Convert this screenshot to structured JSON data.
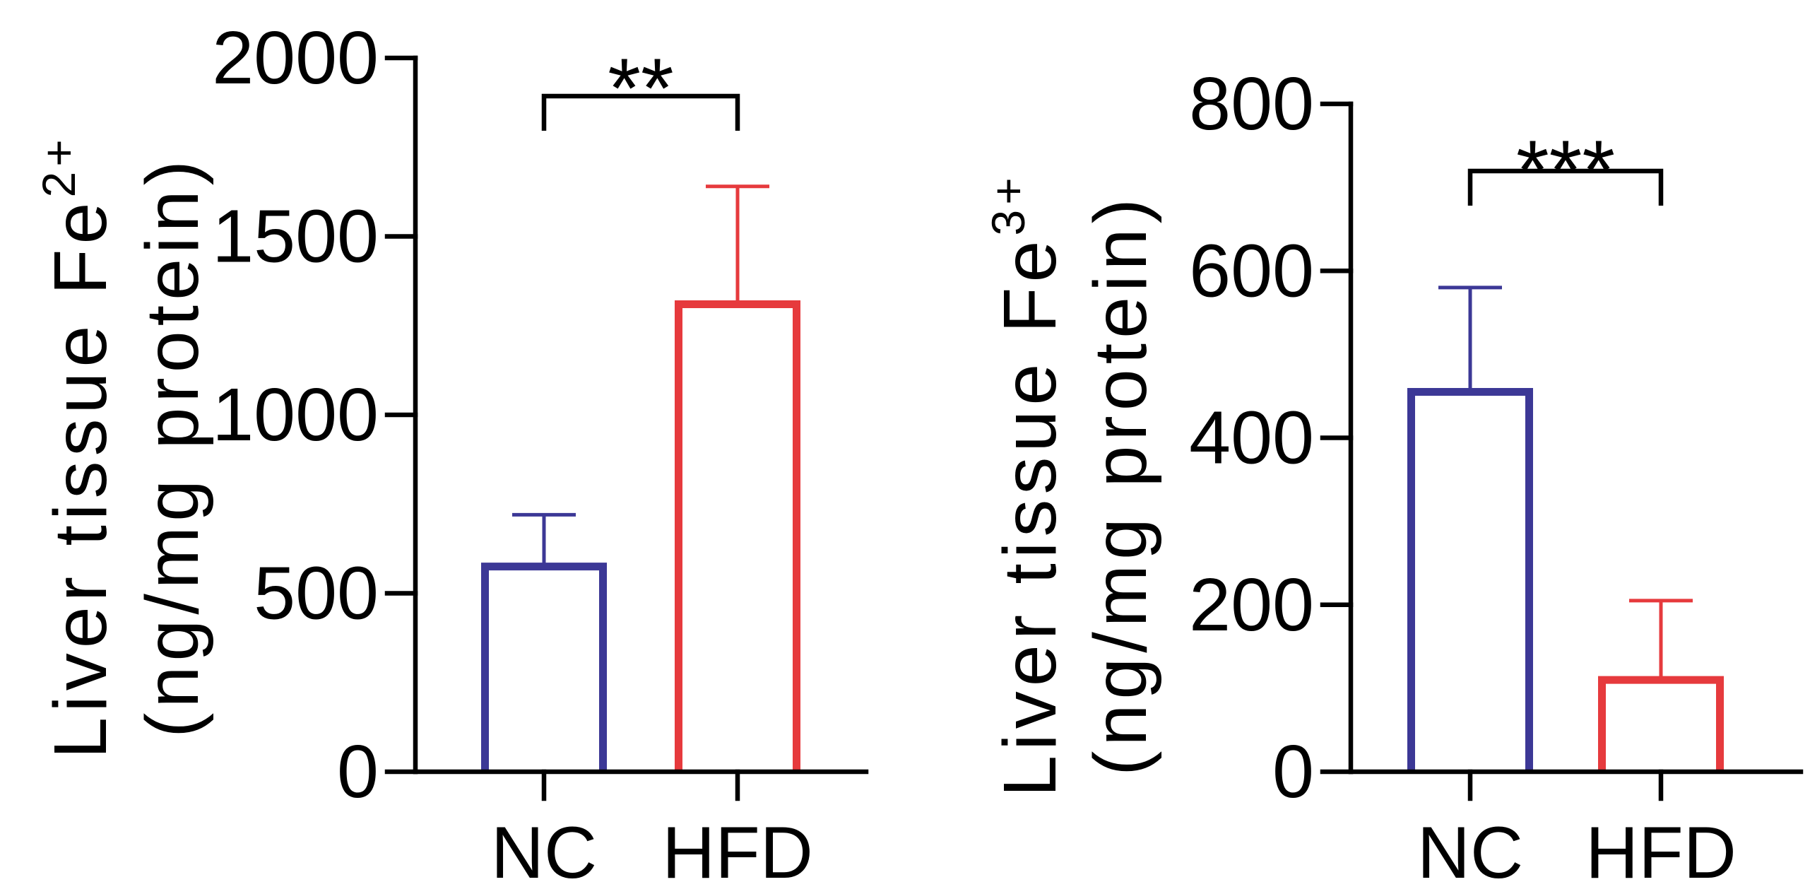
{
  "chart_data": [
    {
      "type": "bar",
      "categories": [
        "NC",
        "HFD"
      ],
      "values": [
        575,
        1310
      ],
      "error_upper": [
        145,
        330
      ],
      "ylabel": "Liver tissue Fe",
      "ylabel_superscript": "2+",
      "ylabel_unit": "(ng/mg protein)",
      "ylim": [
        0,
        2000
      ],
      "yticks": [
        0,
        500,
        1000,
        1500,
        2000
      ],
      "significance": "**",
      "bar_colors": [
        "#3c3896",
        "#e63a3d"
      ],
      "bar_fill": "#ffffff",
      "grid": false
    },
    {
      "type": "bar",
      "categories": [
        "NC",
        "HFD"
      ],
      "values": [
        455,
        110
      ],
      "error_upper": [
        125,
        95
      ],
      "ylabel": "Liver tissue Fe",
      "ylabel_superscript": "3+",
      "ylabel_unit": "(ng/mg protein)",
      "ylim": [
        0,
        800
      ],
      "yticks": [
        0,
        200,
        400,
        600,
        800
      ],
      "significance": "***",
      "bar_colors": [
        "#3c3896",
        "#e63a3d"
      ],
      "bar_fill": "#ffffff",
      "grid": false
    }
  ]
}
